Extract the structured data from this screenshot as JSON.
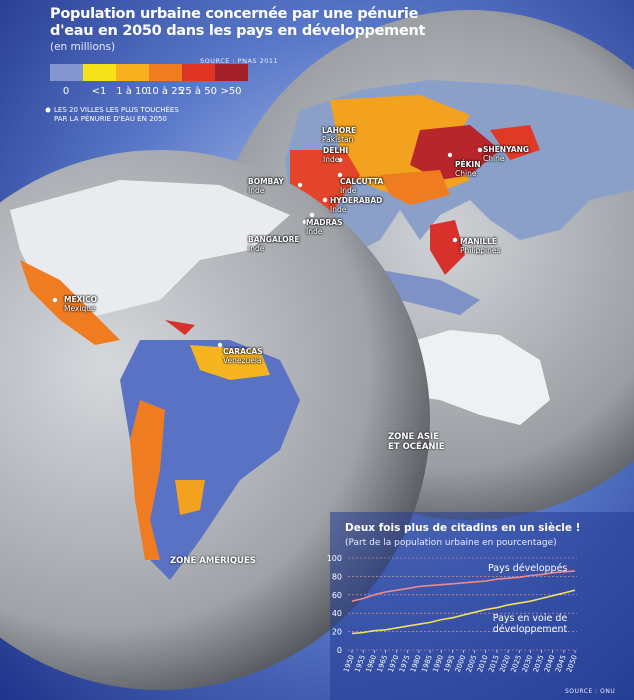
{
  "header": {
    "title": [
      "Population urbaine concernée par une pénurie",
      "d'eau en 2050 dans les pays en développement"
    ],
    "unit": "(en millions)",
    "source": "Source : PNAS 2011"
  },
  "legend": {
    "items": [
      {
        "label": "0",
        "color": "#8595cf"
      },
      {
        "label": "<1",
        "color": "#f6e21a"
      },
      {
        "label": "1 à 10",
        "color": "#f7b01e"
      },
      {
        "label": "10 à 25",
        "color": "#f07c22"
      },
      {
        "label": "25 à 50",
        "color": "#df3424"
      },
      {
        "label": ">50",
        "color": "#a31f27"
      }
    ],
    "note": [
      "Les 20 villes les plus touchées",
      "par la pénurie d'eau en 2050"
    ]
  },
  "cities": [
    {
      "name": "Lahore",
      "country": "Pakistan"
    },
    {
      "name": "Delhi",
      "country": "Inde"
    },
    {
      "name": "Bombay",
      "country": "Inde"
    },
    {
      "name": "Calcutta",
      "country": "Inde"
    },
    {
      "name": "Hyderabad",
      "country": "Inde"
    },
    {
      "name": "Madras",
      "country": "Inde"
    },
    {
      "name": "Bangalore",
      "country": "Inde"
    },
    {
      "name": "Shenyang",
      "country": "Chine"
    },
    {
      "name": "Pékin",
      "country": "Chine"
    },
    {
      "name": "Manille",
      "country": "Philippines"
    },
    {
      "name": "Mexico",
      "country": "Mexique"
    },
    {
      "name": "Caracas",
      "country": "Venezuela"
    }
  ],
  "zones": {
    "americas": "Zone Amériques",
    "asia": [
      "Zone Asie",
      "et Océanie"
    ]
  },
  "chart_data": {
    "type": "line",
    "title": "Deux fois plus de citadins en un siècle !",
    "subtitle": "(Part de la population urbaine en pourcentage)",
    "source": "Source : ONU",
    "x": [
      1950,
      1955,
      1960,
      1965,
      1970,
      1975,
      1980,
      1985,
      1990,
      1995,
      2000,
      2005,
      2010,
      2015,
      2020,
      2025,
      2030,
      2035,
      2040,
      2045,
      2050
    ],
    "xlim": [
      1950,
      2050
    ],
    "xticks": [
      1950,
      1955,
      1960,
      1965,
      1970,
      1975,
      1980,
      1985,
      1990,
      1995,
      2000,
      2005,
      2010,
      2015,
      2020,
      2025,
      2030,
      2035,
      2040,
      2045,
      2050
    ],
    "ylim": [
      0,
      100
    ],
    "yticks": [
      0,
      20,
      40,
      60,
      80,
      100
    ],
    "grid": true,
    "series": [
      {
        "name": "Pays développés",
        "color": "#f08a8a",
        "values": [
          53,
          56,
          60,
          63,
          65,
          67,
          69,
          70,
          71,
          72,
          73,
          74,
          75,
          77,
          78,
          79,
          81,
          82,
          84,
          85,
          86
        ]
      },
      {
        "name": "Pays en voie de développement",
        "color": "#eee060",
        "values": [
          18,
          19,
          21,
          22,
          24,
          26,
          28,
          30,
          33,
          35,
          38,
          41,
          44,
          46,
          49,
          51,
          53,
          56,
          59,
          62,
          65
        ]
      }
    ]
  }
}
